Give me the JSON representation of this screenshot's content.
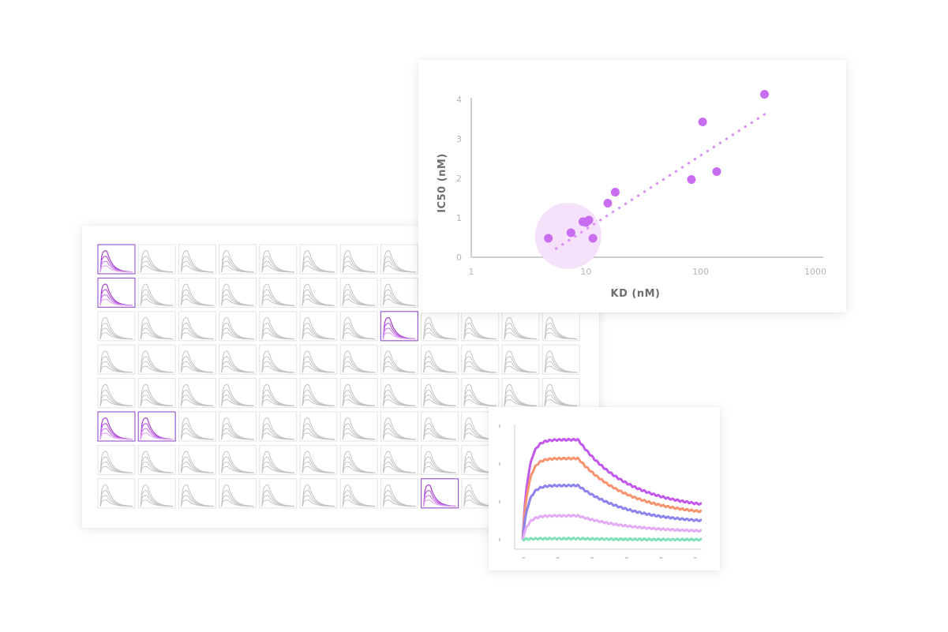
{
  "colors": {
    "accent": "#c86cf0",
    "trend": "#d88cf5",
    "highlight_fill": "#f6e1fb",
    "axis": "#cfcfcf",
    "thumb_gray": "#c4c4c4",
    "thumb_purple": [
      "#a43fd0",
      "#bb5fe0",
      "#cf85ea",
      "#e0aef2"
    ]
  },
  "thumbnail_grid": {
    "rows": 8,
    "cols": 12,
    "highlighted": [
      [
        0,
        0
      ],
      [
        1,
        0
      ],
      [
        2,
        7
      ],
      [
        5,
        0
      ],
      [
        5,
        1
      ],
      [
        7,
        8
      ]
    ]
  },
  "chart_data": [
    {
      "type": "scatter",
      "title": "",
      "xlabel": "KD (nM)",
      "ylabel": "IC50 (nM)",
      "x_scale": "log",
      "xlim": [
        1,
        1000
      ],
      "ylim": [
        0,
        4
      ],
      "x_tick_labels": [
        "1",
        "10",
        "100",
        "1000"
      ],
      "y_tick_labels": [
        "0",
        "1",
        "2",
        "3",
        "4"
      ],
      "x_ticks": [
        1,
        10,
        100,
        1000
      ],
      "y_ticks": [
        0,
        1,
        2,
        3,
        4
      ],
      "points": [
        {
          "x": 4.7,
          "y": 0.48
        },
        {
          "x": 7.4,
          "y": 0.62
        },
        {
          "x": 9.4,
          "y": 0.9
        },
        {
          "x": 10.0,
          "y": 0.88
        },
        {
          "x": 10.6,
          "y": 0.94
        },
        {
          "x": 11.5,
          "y": 0.48
        },
        {
          "x": 15.5,
          "y": 1.37
        },
        {
          "x": 18.0,
          "y": 1.65
        },
        {
          "x": 83,
          "y": 1.97
        },
        {
          "x": 104,
          "y": 3.43
        },
        {
          "x": 138,
          "y": 2.17
        },
        {
          "x": 360,
          "y": 4.13
        }
      ],
      "trendline": {
        "x": [
          5.5,
          360
        ],
        "y": [
          0.22,
          3.62
        ]
      },
      "highlight_region": {
        "x": 7,
        "y": 0.5
      },
      "grid": false
    },
    {
      "type": "line",
      "title": "",
      "xlabel": "",
      "ylabel": "",
      "xlim": [
        0,
        10
      ],
      "ylim": [
        0,
        100
      ],
      "grid": false,
      "x_tick_count": 6,
      "y_tick_count": 4,
      "peak_x": 3.1,
      "series": [
        {
          "color": "#c257eb",
          "rise_to": 96,
          "end_value": 28
        },
        {
          "color": "#f7936e",
          "rise_to": 78,
          "end_value": 22
        },
        {
          "color": "#8d83ed",
          "rise_to": 52,
          "end_value": 15
        },
        {
          "color": "#e5aaf6",
          "rise_to": 23,
          "end_value": 7
        },
        {
          "color": "#7fe0b8",
          "rise_to": 1,
          "end_value": 0
        }
      ]
    }
  ]
}
